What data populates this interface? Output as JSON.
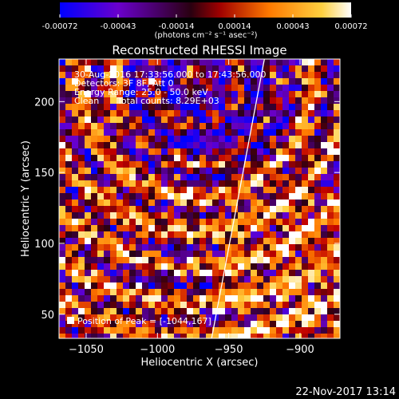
{
  "chart_data": {
    "type": "heatmap",
    "title": "Reconstructed RHESSI Image",
    "colorbar": {
      "ticks": [
        "-0.00072",
        "-0.00043",
        "-0.00014",
        "0.00014",
        "0.00043",
        "0.00072"
      ],
      "unit_label": "(photons cm⁻² s⁻¹ asec⁻²)",
      "range": [
        -0.00072,
        0.00072
      ],
      "colors": [
        "#0000ff",
        "#6a00cc",
        "#2a0010",
        "#c00000",
        "#ff7a00",
        "#ffd040",
        "#ffffff"
      ]
    },
    "xlabel": "Heliocentric X (arcsec)",
    "ylabel": "Heliocentric Y (arcsec)",
    "xlim": [
      -1069,
      -872
    ],
    "ylim": [
      33,
      230
    ],
    "xticks": [
      -1050,
      -1000,
      -950,
      -900
    ],
    "xtick_labels": [
      "−1050",
      "−1000",
      "−950",
      "−900"
    ],
    "yticks": [
      50,
      100,
      150,
      200
    ],
    "ytick_labels": [
      "50",
      "100",
      "150",
      "200"
    ],
    "annotations": [
      "30-Aug-2016 17:33:56.000 to 17:43:56.000",
      "Detectors: 3F 8F, Att 0",
      "Energy Range: 25.0 - 50.0 keV",
      "Clean",
      "Total counts: 8.29E+03"
    ],
    "peak_label": "Position of Peak = [-1044,167]",
    "peak_position": [
      -1044,
      167
    ],
    "limb_line": {
      "x": [
        -962,
        -925
      ],
      "y": [
        33,
        230
      ]
    },
    "grid": false
  },
  "footer": {
    "timestamp": "22-Nov-2017 13:14"
  }
}
